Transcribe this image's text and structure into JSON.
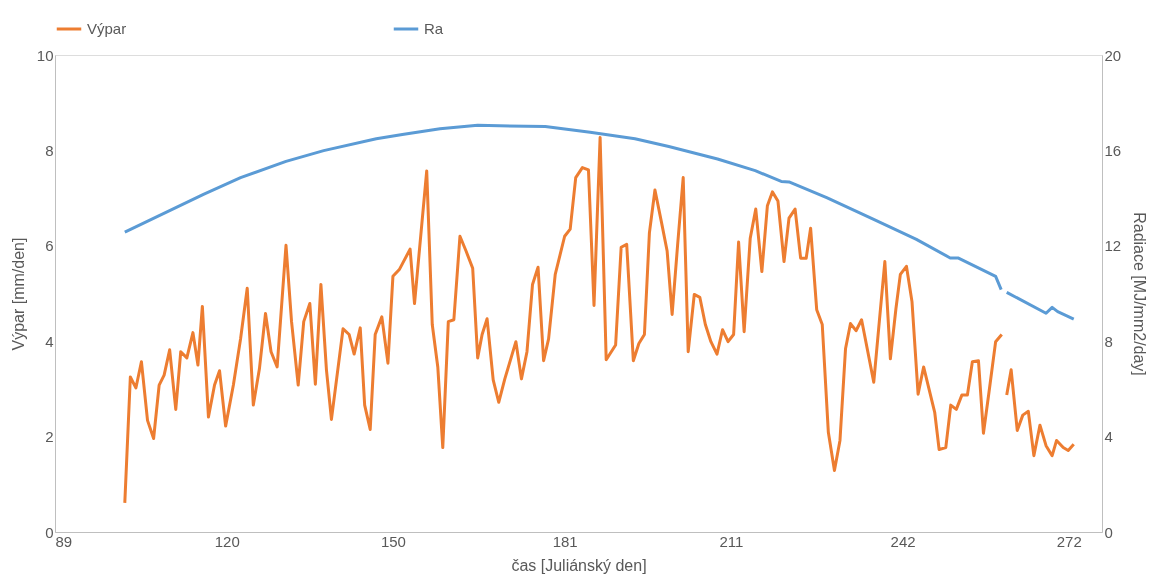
{
  "chart_data": {
    "type": "line",
    "xlabel": "čas [Juliánský den]",
    "ylabel": "Výpar [mm/den]",
    "y2label": "Radiace [MJ/mm2/day]",
    "xlim": [
      89,
      278
    ],
    "xticks": [
      89,
      120,
      150,
      181,
      211,
      242,
      272
    ],
    "ylim": [
      0,
      10
    ],
    "yticks": [
      0,
      2,
      4,
      6,
      8,
      10
    ],
    "y2lim": [
      0,
      20
    ],
    "y2ticks": [
      0,
      4,
      8,
      12,
      16,
      20
    ],
    "grid": false,
    "legend": "top",
    "marker": "none",
    "line_style": "solid",
    "series": [
      {
        "name": "Výpar",
        "color": "#ed7d31",
        "x": [
          101.6,
          102.6,
          103.6,
          104.6,
          105.7,
          106.8,
          107.8,
          108.7,
          109.7,
          110.8,
          111.7,
          112.8,
          113.9,
          114.8,
          115.6,
          116.7,
          117.8,
          118.7,
          119.8,
          121.2,
          122.5,
          123.7,
          124.8,
          125.9,
          127,
          128,
          129.1,
          130.7,
          131.7,
          132.9,
          133.9,
          135,
          136,
          137,
          138,
          138.9,
          141,
          142.1,
          143,
          144.1,
          144.9,
          145.9,
          146.8,
          148,
          149.1,
          150,
          151.2,
          153.1,
          153.9,
          155.1,
          156.1,
          157.1,
          158.1,
          159,
          160,
          161,
          162.1,
          163.2,
          164.4,
          165.3,
          166.1,
          167,
          168.1,
          169.1,
          170.2,
          172.2,
          173.2,
          174.2,
          175.2,
          176.2,
          177.2,
          178.1,
          179.3,
          181,
          182,
          183,
          184.2,
          185.3,
          186.3,
          187.4,
          188.5,
          190.2,
          191.2,
          192.2,
          193.4,
          194.4,
          195.4,
          196.3,
          197.3,
          198.5,
          199.5,
          200.4,
          201.4,
          202.4,
          203.3,
          204.4,
          205.4,
          206.4,
          207.4,
          208.5,
          209.5,
          210.5,
          211.5,
          212.4,
          213.4,
          214.5,
          215.5,
          216.6,
          217.6,
          218.5,
          219.5,
          220.6,
          221.5,
          222.6,
          223.6,
          224.6,
          225.4,
          226.5,
          227.5,
          228.6,
          229.7,
          230.7,
          231.7,
          232.6,
          233.6,
          234.6,
          236.8,
          237.8,
          238.8,
          239.8,
          240.8,
          241.6,
          242.7,
          243.7,
          244.8,
          245.8,
          247.8,
          248.6,
          249.8,
          250.7,
          251.7,
          252.7,
          253.7,
          254.6,
          255.7,
          256.6,
          257.6,
          258.8,
          259.9,
          260.3,
          260.8,
          261.6,
          262.7,
          263.7,
          264.7,
          265.7,
          266.8,
          267.9,
          269,
          269.8,
          271,
          271.9,
          272.9
        ],
        "values": [
          0.61,
          3.25,
          3.02,
          3.57,
          2.34,
          1.96,
          3.08,
          3.29,
          3.82,
          2.57,
          3.78,
          3.65,
          4.18,
          3.5,
          4.73,
          2.41,
          3.08,
          3.38,
          2.22,
          3.08,
          4.05,
          5.11,
          2.66,
          3.42,
          4.58,
          3.78,
          3.46,
          6.01,
          4.41,
          3.08,
          4.41,
          4.79,
          3.1,
          5.19,
          3.4,
          2.36,
          4.26,
          4.14,
          3.73,
          4.28,
          2.66,
          2.15,
          4.14,
          4.51,
          3.54,
          5.36,
          5.51,
          5.93,
          4.79,
          6.31,
          7.57,
          4.35,
          3.46,
          1.77,
          4.41,
          4.45,
          6.2,
          5.89,
          5.53,
          3.65,
          4.14,
          4.47,
          3.19,
          2.72,
          3.21,
          3.99,
          3.21,
          3.78,
          5.19,
          5.55,
          3.59,
          4.05,
          5.4,
          6.2,
          6.35,
          7.43,
          7.64,
          7.59,
          4.75,
          8.27,
          3.61,
          3.92,
          5.97,
          6.03,
          3.59,
          3.95,
          4.14,
          6.27,
          7.17,
          6.48,
          5.89,
          4.56,
          6.03,
          7.43,
          3.78,
          4.98,
          4.92,
          4.35,
          3.99,
          3.73,
          4.24,
          3.99,
          4.14,
          6.08,
          4.2,
          6.16,
          6.77,
          5.46,
          6.84,
          7.13,
          6.94,
          5.67,
          6.58,
          6.77,
          5.74,
          5.74,
          6.37,
          4.66,
          4.35,
          2.09,
          1.29,
          1.92,
          3.84,
          4.37,
          4.22,
          4.45,
          3.14,
          4.41,
          5.67,
          3.63,
          4.68,
          5.4,
          5.57,
          4.83,
          2.89,
          3.46,
          2.51,
          1.73,
          1.77,
          2.66,
          2.57,
          2.87,
          2.87,
          3.57,
          3.59,
          2.07,
          2.93,
          3.99,
          4.14,
          null,
          2.87,
          3.4,
          2.13,
          2.45,
          2.53,
          1.6,
          2.24,
          1.81,
          1.6,
          1.92,
          1.77,
          1.71,
          1.84
        ]
      },
      {
        "name": "Ra",
        "color": "#5b9bd5",
        "axis": "y2",
        "x": [
          101.6,
          115.8,
          122.5,
          130.7,
          137.5,
          147,
          151.7,
          158.5,
          165.3,
          177.5,
          185.6,
          193.7,
          199.8,
          208.6,
          215.4,
          220.1,
          221.5,
          228.3,
          236.4,
          244.5,
          250.6,
          252,
          258.8,
          259.8,
          260.3,
          260.8,
          267.9,
          269,
          270,
          272.9
        ],
        "values": [
          12.57,
          14.16,
          14.86,
          15.54,
          15.99,
          16.49,
          16.67,
          16.91,
          17.05,
          17.0,
          16.76,
          16.49,
          16.16,
          15.64,
          15.15,
          14.7,
          14.68,
          14.02,
          13.15,
          12.27,
          11.49,
          11.49,
          10.72,
          10.16,
          null,
          10.05,
          9.17,
          9.42,
          9.24,
          8.93
        ]
      }
    ]
  }
}
